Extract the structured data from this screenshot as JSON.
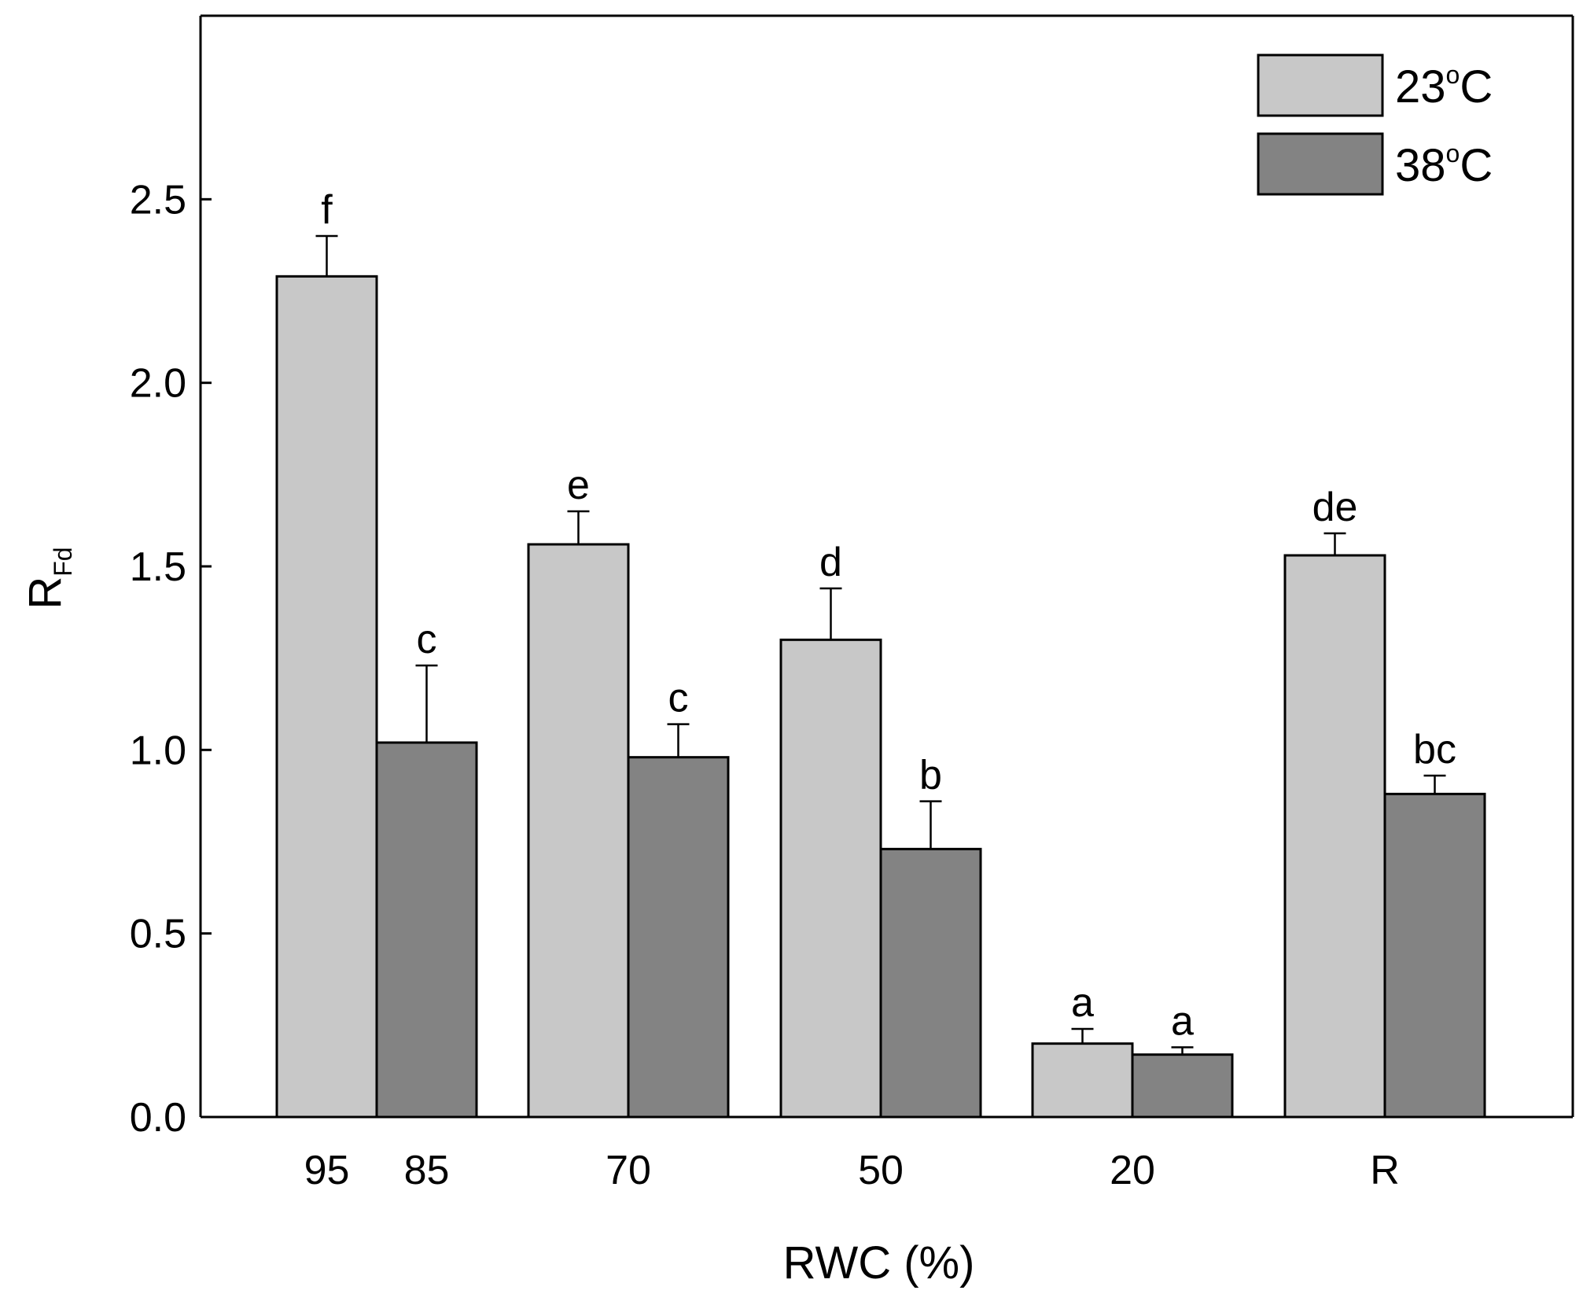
{
  "chart_data": {
    "type": "bar",
    "title": "",
    "xlabel": "RWC (%)",
    "ylabel": {
      "main": "R",
      "sub": "Fd"
    },
    "ylim": [
      0,
      3.0
    ],
    "yticks": [
      "0.0",
      "0.5",
      "1.0",
      "1.5",
      "2.0",
      "2.5"
    ],
    "legend_position": "top-right",
    "colors": {
      "23": "#c8c8c8",
      "38": "#838383",
      "axis": "#000000"
    },
    "groups": [
      {
        "tick_labels": [
          "95",
          "85"
        ],
        "bars": [
          {
            "series": "23",
            "value": 2.29,
            "error": 0.11,
            "label": "f"
          },
          {
            "series": "38",
            "value": 1.02,
            "error": 0.21,
            "label": "c"
          }
        ]
      },
      {
        "tick_labels": [
          "70"
        ],
        "bars": [
          {
            "series": "23",
            "value": 1.56,
            "error": 0.09,
            "label": "e"
          },
          {
            "series": "38",
            "value": 0.98,
            "error": 0.09,
            "label": "c"
          }
        ]
      },
      {
        "tick_labels": [
          "50"
        ],
        "bars": [
          {
            "series": "23",
            "value": 1.3,
            "error": 0.14,
            "label": "d"
          },
          {
            "series": "38",
            "value": 0.73,
            "error": 0.13,
            "label": "b"
          }
        ]
      },
      {
        "tick_labels": [
          "20"
        ],
        "bars": [
          {
            "series": "23",
            "value": 0.2,
            "error": 0.04,
            "label": "a"
          },
          {
            "series": "38",
            "value": 0.17,
            "error": 0.02,
            "label": "a"
          }
        ]
      },
      {
        "tick_labels": [
          "R"
        ],
        "bars": [
          {
            "series": "23",
            "value": 1.53,
            "error": 0.06,
            "label": "de"
          },
          {
            "series": "38",
            "value": 0.88,
            "error": 0.05,
            "label": "bc"
          }
        ]
      }
    ],
    "legend": [
      {
        "series": "23",
        "num": "23",
        "deg": "o",
        "unit": "C"
      },
      {
        "series": "38",
        "num": "38",
        "deg": "o",
        "unit": "C"
      }
    ]
  }
}
